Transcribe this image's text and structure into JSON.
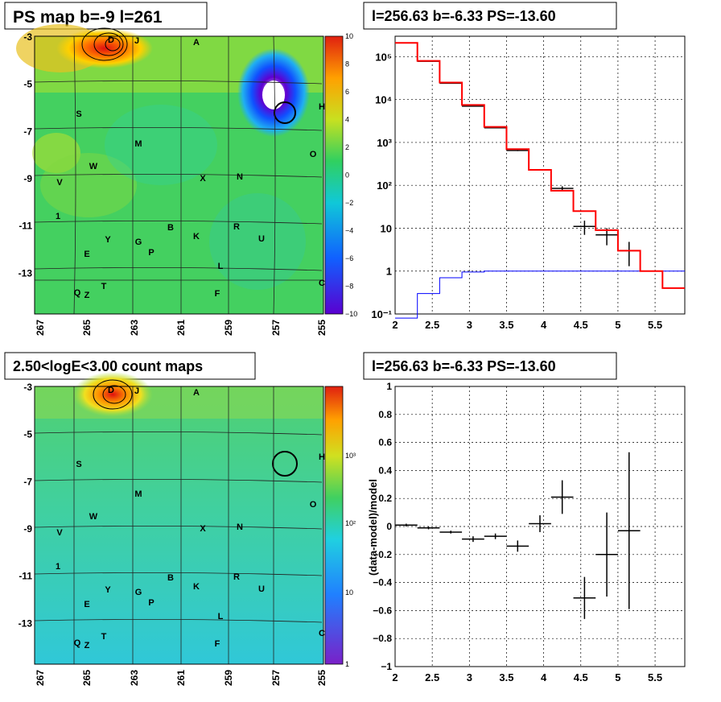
{
  "panels": {
    "map_title": "PS map b=-9 l=261",
    "spectrum_title": "l=256.63 b=-6.33 PS=-13.60",
    "count_title": "2.50<logE<3.00 count maps",
    "residual_title": "l=256.63 b=-6.33 PS=-13.60"
  },
  "colors": {
    "data": "#000000",
    "model": "#ff0000",
    "component": "#0000ff"
  },
  "maps": {
    "x_ticks": [
      "267",
      "265",
      "263",
      "261",
      "259",
      "257",
      "255"
    ],
    "y_ticks": [
      "-3",
      "-5",
      "-7",
      "-9",
      "-11",
      "-13"
    ],
    "psmap_colorbar": [
      "10",
      "8",
      "6",
      "4",
      "2",
      "0",
      "−2",
      "−4",
      "−6",
      "−8",
      "−10"
    ],
    "count_colorbar": [
      "10³",
      "10²",
      "10",
      "1"
    ],
    "source_labels": [
      "D",
      "J",
      "A",
      "H",
      "S",
      "M",
      "O",
      "W",
      "V",
      "X",
      "N",
      "1",
      "B",
      "R",
      "Y",
      "G",
      "K",
      "U",
      "E",
      "P",
      "L",
      "Q",
      "Z",
      "T",
      "F",
      "C"
    ]
  },
  "chart_data": [
    {
      "type": "line",
      "title": "l=256.63 b=-6.33 PS=-13.60",
      "xlabel": "",
      "ylabel": "",
      "xlim": [
        2,
        5.9
      ],
      "ylim": [
        0.1,
        300000
      ],
      "yscale": "log",
      "x_ticks": [
        "2",
        "2.5",
        "3",
        "3.5",
        "4",
        "4.5",
        "5",
        "5.5"
      ],
      "y_ticks": [
        "10⁻¹",
        "1",
        "10",
        "10²",
        "10³",
        "10⁴",
        "10⁵"
      ],
      "grid": true,
      "bins": [
        2.0,
        2.3,
        2.6,
        2.9,
        3.2,
        3.5,
        3.8,
        4.1,
        4.4,
        4.7,
        5.0,
        5.3,
        5.6,
        5.9
      ],
      "model": [
        210000,
        80000,
        25000,
        7500,
        2300,
        700,
        230,
        75,
        25,
        9,
        3,
        1,
        0.4
      ],
      "component": [
        0.08,
        0.3,
        0.7,
        0.95,
        1.0,
        1.0,
        1.0,
        1.0,
        1.0,
        1.0,
        1.0,
        1.0,
        1.0
      ],
      "data_points": [
        {
          "x": 2.15,
          "y": 210000,
          "xerr": 0.15,
          "ylo": 209000,
          "yhi": 211000
        },
        {
          "x": 2.45,
          "y": 78000,
          "xerr": 0.15,
          "ylo": 77500,
          "yhi": 78500
        },
        {
          "x": 2.75,
          "y": 24000,
          "xerr": 0.15,
          "ylo": 23800,
          "yhi": 24200
        },
        {
          "x": 3.05,
          "y": 7000,
          "xerr": 0.15,
          "ylo": 6900,
          "yhi": 7100
        },
        {
          "x": 3.35,
          "y": 2200,
          "xerr": 0.15,
          "ylo": 2150,
          "yhi": 2250
        },
        {
          "x": 3.65,
          "y": 650,
          "xerr": 0.15,
          "ylo": 630,
          "yhi": 670
        },
        {
          "x": 3.95,
          "y": 230,
          "xerr": 0.15,
          "ylo": 220,
          "yhi": 240
        },
        {
          "x": 4.25,
          "y": 85,
          "xerr": 0.15,
          "ylo": 75,
          "yhi": 95
        },
        {
          "x": 4.55,
          "y": 11,
          "xerr": 0.15,
          "ylo": 7,
          "yhi": 15
        },
        {
          "x": 4.85,
          "y": 7,
          "xerr": 0.15,
          "ylo": 4,
          "yhi": 10
        },
        {
          "x": 5.15,
          "y": 3,
          "xerr": 0.15,
          "ylo": 1.3,
          "yhi": 4.8
        }
      ]
    },
    {
      "type": "scatter",
      "title": "l=256.63 b=-6.33 PS=-13.60",
      "xlabel": "",
      "ylabel": "(data-model)/model",
      "xlim": [
        2,
        5.9
      ],
      "ylim": [
        -1,
        1
      ],
      "x_ticks": [
        "2",
        "2.5",
        "3",
        "3.5",
        "4",
        "4.5",
        "5",
        "5.5"
      ],
      "y_ticks": [
        "1",
        "0.8",
        "0.6",
        "0.4",
        "0.2",
        "0",
        "−0.2",
        "−0.4",
        "−0.6",
        "−0.8",
        "−1"
      ],
      "grid": true,
      "points": [
        {
          "x": 2.15,
          "y": 0.01,
          "xerr": 0.15,
          "yerr": 0.01
        },
        {
          "x": 2.45,
          "y": -0.01,
          "xerr": 0.15,
          "yerr": 0.01
        },
        {
          "x": 2.75,
          "y": -0.04,
          "xerr": 0.15,
          "yerr": 0.01
        },
        {
          "x": 3.05,
          "y": -0.09,
          "xerr": 0.15,
          "yerr": 0.02
        },
        {
          "x": 3.35,
          "y": -0.07,
          "xerr": 0.15,
          "yerr": 0.02
        },
        {
          "x": 3.65,
          "y": -0.14,
          "xerr": 0.15,
          "yerr": 0.04
        },
        {
          "x": 3.95,
          "y": 0.02,
          "xerr": 0.15,
          "yerr": 0.06
        },
        {
          "x": 4.25,
          "y": 0.21,
          "xerr": 0.15,
          "yerr": 0.12
        },
        {
          "x": 4.55,
          "y": -0.51,
          "xerr": 0.15,
          "yerr": 0.15
        },
        {
          "x": 4.85,
          "y": -0.2,
          "xerr": 0.15,
          "yerr": 0.3
        },
        {
          "x": 5.15,
          "y": -0.03,
          "xerr": 0.15,
          "yerr": 0.56
        }
      ]
    }
  ]
}
